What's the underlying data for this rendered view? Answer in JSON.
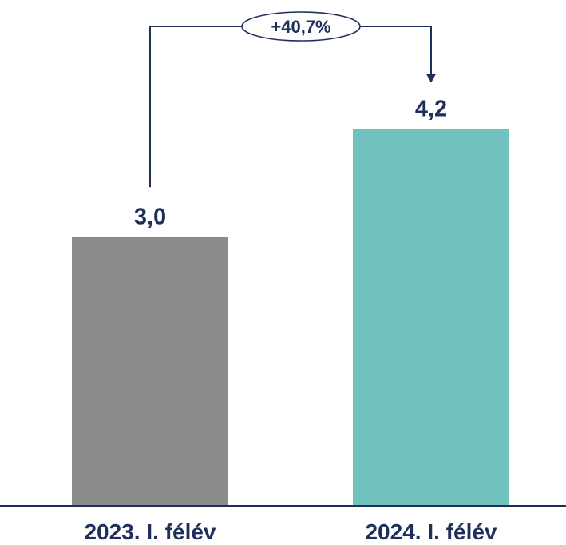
{
  "chart_data": {
    "type": "bar",
    "title": "",
    "xlabel": "",
    "ylabel": "",
    "categories": [
      "2023. I. félév",
      "2024. I. félév"
    ],
    "values": [
      3.0,
      4.2
    ],
    "value_labels": [
      "3,0",
      "4,2"
    ],
    "bar_colors": [
      "#8c8c8c",
      "#6fc2bd"
    ],
    "ylim": [
      0,
      4.9
    ],
    "grid": false,
    "annotation": {
      "type": "growth-arrow",
      "from": 0,
      "to": 1,
      "text": "+40,7%",
      "color": "#1f2f5c"
    }
  }
}
